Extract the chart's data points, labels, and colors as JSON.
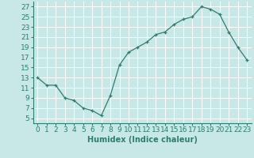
{
  "x": [
    0,
    1,
    2,
    3,
    4,
    5,
    6,
    7,
    8,
    9,
    10,
    11,
    12,
    13,
    14,
    15,
    16,
    17,
    18,
    19,
    20,
    21,
    22,
    23
  ],
  "y": [
    13,
    11.5,
    11.5,
    9,
    8.5,
    7,
    6.5,
    5.5,
    9.5,
    15.5,
    18,
    19,
    20,
    21.5,
    22,
    23.5,
    24.5,
    25,
    27,
    26.5,
    25.5,
    22,
    19,
    16.5
  ],
  "xlabel": "Humidex (Indice chaleur)",
  "xlim": [
    -0.5,
    23.5
  ],
  "ylim": [
    4,
    28
  ],
  "yticks": [
    5,
    7,
    9,
    11,
    13,
    15,
    17,
    19,
    21,
    23,
    25,
    27
  ],
  "xticks": [
    0,
    1,
    2,
    3,
    4,
    5,
    6,
    7,
    8,
    9,
    10,
    11,
    12,
    13,
    14,
    15,
    16,
    17,
    18,
    19,
    20,
    21,
    22,
    23
  ],
  "line_color": "#2e7d6e",
  "marker": "+",
  "bg_color": "#c8e8e8",
  "grid_color": "#ffffff",
  "label_fontsize": 7,
  "tick_fontsize": 6.5
}
